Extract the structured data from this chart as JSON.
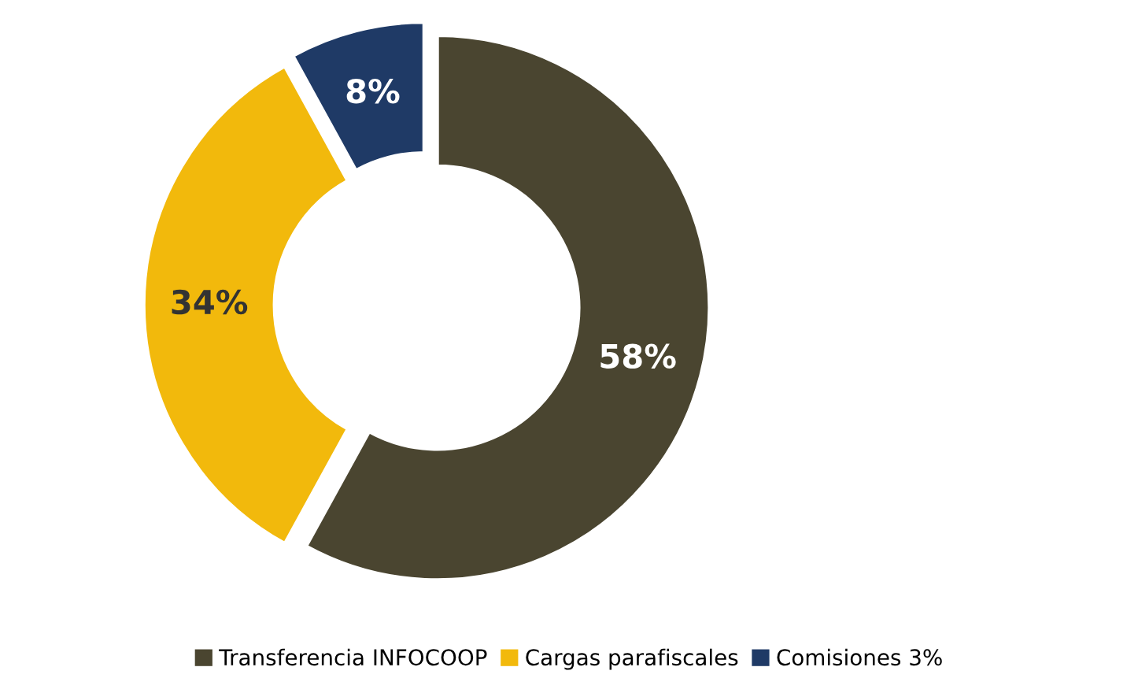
{
  "chart_data": {
    "type": "donut",
    "categories": [
      "Transferencia INFOCOOP",
      "Cargas parafiscales",
      "Comisiones 3%"
    ],
    "values": [
      58,
      34,
      8
    ],
    "colors": [
      "#4a4530",
      "#f2b90c",
      "#1f3a66"
    ],
    "value_labels": [
      "58%",
      "34%",
      "8%"
    ],
    "legend": "bottom"
  }
}
